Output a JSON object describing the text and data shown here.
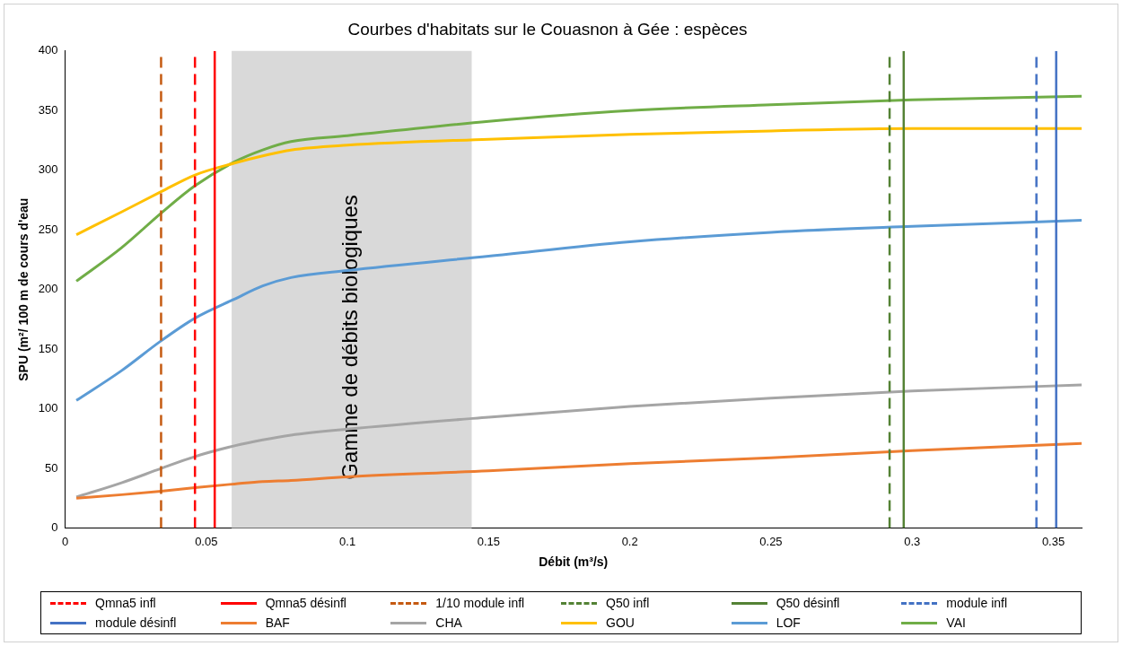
{
  "chart_data": {
    "type": "line",
    "title": "Courbes d'habitats sur le Couasnon à Gée : espèces",
    "xlabel": "Débit (m³/s)",
    "ylabel": "SPU (m²/ 100 m de cours d'eau",
    "xlim": [
      0,
      0.36
    ],
    "xticks": [
      0,
      0.05,
      0.1,
      0.15,
      0.2,
      0.25,
      0.3,
      0.35
    ],
    "ylim": [
      0,
      400
    ],
    "yticks": [
      0,
      50,
      100,
      150,
      200,
      250,
      300,
      350,
      400
    ],
    "legend": "bottom",
    "marker": "none",
    "ref_lines": [
      {
        "axis": "x",
        "value": 0.046,
        "label": "Qmna5 infl",
        "color": "#ff0000",
        "line_style": "dashed"
      },
      {
        "axis": "x",
        "value": 0.053,
        "label": "Qmna5 désinfl",
        "color": "#ff0000",
        "line_style": "solid"
      },
      {
        "axis": "x",
        "value": 0.034,
        "label": "1/10 module infl",
        "color": "#c55a11",
        "line_style": "dashed"
      },
      {
        "axis": "x",
        "value": 0.292,
        "label": "Q50 infl",
        "color": "#548235",
        "line_style": "dashed"
      },
      {
        "axis": "x",
        "value": 0.297,
        "label": "Q50 désinfl",
        "color": "#548235",
        "line_style": "solid"
      },
      {
        "axis": "x",
        "value": 0.344,
        "label": "module infl",
        "color": "#4472c4",
        "line_style": "dashed"
      },
      {
        "axis": "x",
        "value": 0.351,
        "label": "module désinfl",
        "color": "#4472c4",
        "line_style": "solid"
      }
    ],
    "bands": [
      {
        "axis": "x",
        "from": 0.059,
        "to": 0.144,
        "label": "Gamme de débits biologiques",
        "color": "#d9d9d9"
      }
    ],
    "x": [
      0.004,
      0.02,
      0.034,
      0.046,
      0.06,
      0.07,
      0.08,
      0.1,
      0.15,
      0.2,
      0.25,
      0.3,
      0.36
    ],
    "series": [
      {
        "name": "BAF",
        "color": "#ed7d31",
        "values": [
          25,
          28,
          31,
          34,
          37,
          39,
          40,
          43,
          48,
          54,
          59,
          65,
          71
        ]
      },
      {
        "name": "CHA",
        "color": "#a5a5a5",
        "values": [
          26,
          38,
          50,
          60,
          69,
          74,
          78,
          83,
          93,
          102,
          109,
          115,
          120
        ]
      },
      {
        "name": "GOU",
        "color": "#ffc000",
        "values": [
          246,
          265,
          282,
          296,
          306,
          312,
          317,
          321,
          326,
          330,
          333,
          335,
          335
        ]
      },
      {
        "name": "LOF",
        "color": "#5b9bd5",
        "values": [
          107,
          132,
          157,
          176,
          192,
          203,
          210,
          216,
          228,
          240,
          248,
          253,
          258
        ]
      },
      {
        "name": "VAI",
        "color": "#70ad47",
        "values": [
          207,
          235,
          264,
          287,
          307,
          317,
          324,
          329,
          341,
          350,
          355,
          359,
          362
        ]
      }
    ]
  }
}
